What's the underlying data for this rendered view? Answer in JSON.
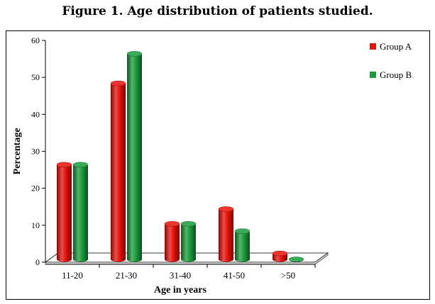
{
  "title": "Figure 1. Age distribution of patients studied.",
  "chart_data": {
    "type": "bar",
    "categories": [
      "11-20",
      "21-30",
      "31-40",
      "41-50",
      ">50"
    ],
    "series": [
      {
        "name": "Group A",
        "values": [
          26,
          48,
          10,
          14,
          2
        ],
        "color": "#e8120c"
      },
      {
        "name": "Group B",
        "values": [
          26,
          56,
          10,
          8,
          0
        ],
        "color": "#1a9c3c"
      }
    ],
    "xlabel": "Age in years",
    "ylabel": "Percentage",
    "ylim": [
      0,
      60
    ],
    "yticks": [
      0,
      10,
      20,
      30,
      40,
      50,
      60
    ],
    "legend_position": "top-right",
    "grid": false,
    "style": "3d-cylinder"
  }
}
